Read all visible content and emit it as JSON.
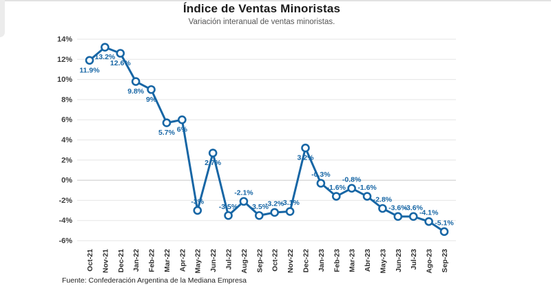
{
  "chart_data": {
    "type": "line",
    "title": "Índice de Ventas Minoristas",
    "subtitle": "Variación interanual de ventas minoristas.",
    "source": "Fuente: Confederación Argentina de la Mediana Empresa",
    "categories": [
      "Oct-21",
      "Nov-21",
      "Dec-21",
      "Jan-22",
      "Feb-22",
      "Mar-22",
      "Apr-22",
      "May-22",
      "Jun-22",
      "Jul-22",
      "Aug-22",
      "Sep-22",
      "Oct-22",
      "Nov-22",
      "Dec-22",
      "Jan-23",
      "Feb-23",
      "Mar-23",
      "Abr-23",
      "May-23",
      "Jun-23",
      "Jul-23",
      "Ago-23",
      "Sep-23"
    ],
    "values": [
      11.9,
      13.2,
      12.6,
      9.8,
      9,
      5.7,
      6,
      -3,
      2.7,
      -3.5,
      -2.1,
      -3.5,
      -3.2,
      -3.1,
      3.2,
      -0.3,
      -1.6,
      -0.8,
      -1.6,
      -2.8,
      -3.6,
      -3.6,
      -4.1,
      -5.1
    ],
    "labels": [
      "11.9%",
      "13.2%",
      "12.6%",
      "9.8%",
      "9%",
      "5.7%",
      "6%",
      "-3%",
      "2.7%",
      "-3.5%",
      "-2.1%",
      "-3.5%",
      "-3.2%",
      "-3.1%",
      "3.2%",
      "-0.3%",
      "-1.6%",
      "-0.8%",
      "-1.6%",
      "-2.8%",
      "-3.6%",
      "-3.6%",
      "-4.1%",
      "-5.1%"
    ],
    "xlabel": "",
    "ylabel": "",
    "ylim": [
      -6,
      14
    ],
    "yticks": [
      -6,
      -4,
      -2,
      0,
      2,
      4,
      6,
      8,
      10,
      12,
      14
    ],
    "ytick_suffix": "%",
    "grid": true,
    "legend": "none",
    "line_color": "#1766a5",
    "marker": "circle-open",
    "marker_fill": "#ffffff",
    "gridline_color": "#e5e5e5",
    "zeroline_color": "#c6c6c6"
  }
}
